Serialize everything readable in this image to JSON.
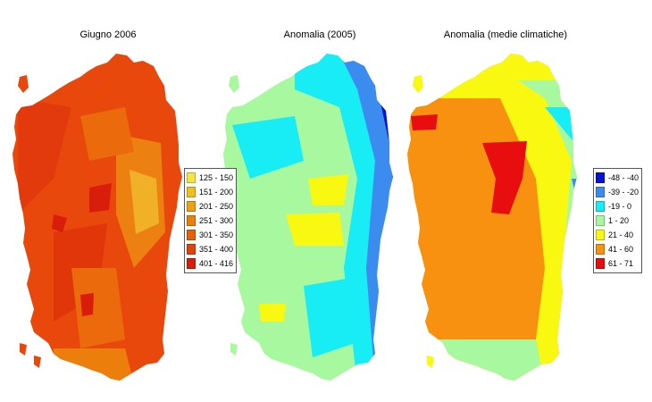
{
  "maps": [
    {
      "title": "Giugno 2006",
      "legend": [
        {
          "label": "125 - 150",
          "color": "#f4e640"
        },
        {
          "label": "151 - 200",
          "color": "#f0c020"
        },
        {
          "label": "201 - 250",
          "color": "#eea012"
        },
        {
          "label": "251 - 300",
          "color": "#ec7e0c"
        },
        {
          "label": "301 - 350",
          "color": "#e8600a"
        },
        {
          "label": "351 - 400",
          "color": "#e2420c"
        },
        {
          "label": "401 - 416",
          "color": "#d81e0a"
        }
      ]
    },
    {
      "title": "Anomalia (2005)",
      "legend": []
    },
    {
      "title": "Anomalia (medie climatiche)",
      "legend": [
        {
          "label": "-48 - -40",
          "color": "#0014d8"
        },
        {
          "label": "-39 - -20",
          "color": "#3c8cf0"
        },
        {
          "label": "-19 - 0",
          "color": "#18ecf4"
        },
        {
          "label": "1 - 20",
          "color": "#a8f8a0"
        },
        {
          "label": "21 - 40",
          "color": "#f8f810"
        },
        {
          "label": "41 - 60",
          "color": "#f89010"
        },
        {
          "label": "61 - 71",
          "color": "#e80e10"
        }
      ]
    }
  ]
}
